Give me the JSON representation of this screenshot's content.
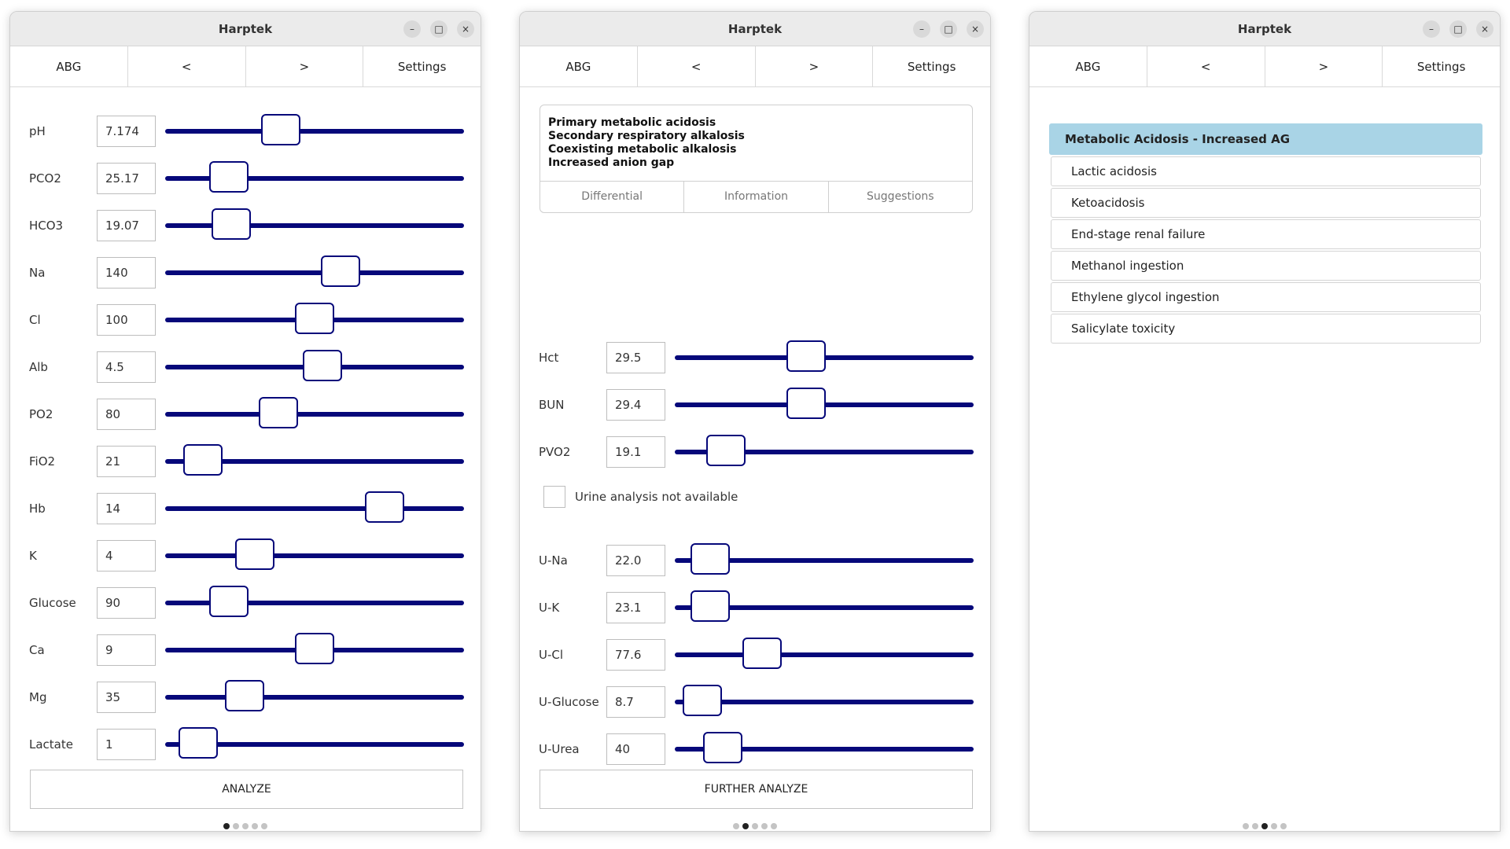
{
  "app_title": "Harptek",
  "window_controls": {
    "minimize": "–",
    "maximize": "□",
    "close": "×"
  },
  "toolbar": {
    "abg": "ABG",
    "prev": "<",
    "next": ">",
    "settings": "Settings"
  },
  "colors": {
    "slider": "#06087a",
    "dx_header_bg": "#a9d4e6"
  },
  "panel1": {
    "params": [
      {
        "label": "pH",
        "value": "7.174",
        "level": 0.37
      },
      {
        "label": "PCO2",
        "value": "25.17",
        "level": 0.17
      },
      {
        "label": "HCO3",
        "value": "19.07",
        "level": 0.18
      },
      {
        "label": "Na",
        "value": "140",
        "level": 0.6
      },
      {
        "label": "Cl",
        "value": "100",
        "level": 0.5
      },
      {
        "label": "Alb",
        "value": "4.5",
        "level": 0.53
      },
      {
        "label": "PO2",
        "value": "80",
        "level": 0.36
      },
      {
        "label": "FiO2",
        "value": "21",
        "level": 0.07
      },
      {
        "label": "Hb",
        "value": "14",
        "level": 0.77
      },
      {
        "label": "K",
        "value": "4",
        "level": 0.27
      },
      {
        "label": "Glucose",
        "value": "90",
        "level": 0.17
      },
      {
        "label": "Ca",
        "value": "9",
        "level": 0.5
      },
      {
        "label": "Mg",
        "value": "35",
        "level": 0.23
      },
      {
        "label": "Lactate",
        "value": "1",
        "level": 0.05
      }
    ],
    "analyze_label": "ANALYZE"
  },
  "panel2": {
    "results": [
      "Primary metabolic acidosis",
      "Secondary respiratory alkalosis",
      "Coexisting metabolic alkalosis",
      "Increased anion gap"
    ],
    "tabs": [
      "Differential",
      "Information",
      "Suggestions"
    ],
    "params_top": [
      {
        "label": "Hct",
        "value": "29.5",
        "level": 0.43
      },
      {
        "label": "BUN",
        "value": "29.4",
        "level": 0.43
      },
      {
        "label": "PVO2",
        "value": "19.1",
        "level": 0.12
      }
    ],
    "urine_checkbox_label": "Urine analysis not available",
    "params_urine": [
      {
        "label": "U-Na",
        "value": "22.0",
        "level": 0.06
      },
      {
        "label": "U-K",
        "value": "23.1",
        "level": 0.06
      },
      {
        "label": "U-Cl",
        "value": "77.6",
        "level": 0.26
      },
      {
        "label": "U-Glucose",
        "value": "8.7",
        "level": 0.03
      },
      {
        "label": "U-Urea",
        "value": "40",
        "level": 0.11
      }
    ],
    "further_label": "FURTHER ANALYZE"
  },
  "panel3": {
    "header": "Metabolic Acidosis - Increased AG",
    "items": [
      "Lactic acidosis",
      "Ketoacidosis",
      "End-stage renal failure",
      "Methanol ingestion",
      "Ethylene glycol ingestion",
      "Salicylate toxicity"
    ]
  },
  "pager": {
    "count": 5,
    "active": [
      0,
      1,
      2
    ]
  }
}
